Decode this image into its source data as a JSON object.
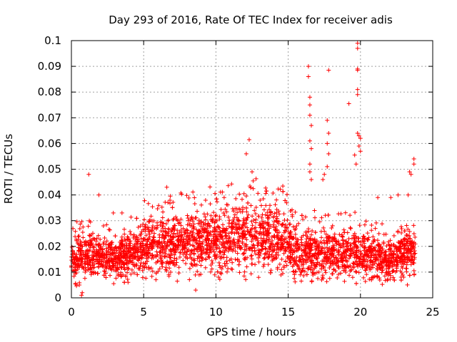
{
  "chart_data": {
    "type": "scatter",
    "title": "Day 293 of 2016, Rate Of TEC Index for receiver adis",
    "xlabel": "GPS time / hours",
    "ylabel": "ROTI / TECUs",
    "xlim": [
      0,
      25
    ],
    "ylim": [
      0,
      0.1
    ],
    "xticks": [
      "0",
      "5",
      "10",
      "15",
      "20",
      "25"
    ],
    "yticks": [
      "0",
      "0.01",
      "0.02",
      "0.03",
      "0.04",
      "0.05",
      "0.06",
      "0.07",
      "0.08",
      "0.09",
      "0.1"
    ],
    "grid": true,
    "marker": "+",
    "color": "#ff0000",
    "band_profile": [
      {
        "x": 0.0,
        "low": 0.005,
        "high": 0.024
      },
      {
        "x": 0.5,
        "low": 0.004,
        "high": 0.03
      },
      {
        "x": 1.0,
        "low": 0.005,
        "high": 0.028
      },
      {
        "x": 2.0,
        "low": 0.005,
        "high": 0.026
      },
      {
        "x": 3.0,
        "low": 0.005,
        "high": 0.025
      },
      {
        "x": 4.0,
        "low": 0.006,
        "high": 0.028
      },
      {
        "x": 5.0,
        "low": 0.006,
        "high": 0.034
      },
      {
        "x": 6.0,
        "low": 0.006,
        "high": 0.033
      },
      {
        "x": 7.0,
        "low": 0.006,
        "high": 0.036
      },
      {
        "x": 8.0,
        "low": 0.006,
        "high": 0.037
      },
      {
        "x": 9.0,
        "low": 0.006,
        "high": 0.039
      },
      {
        "x": 10.0,
        "low": 0.007,
        "high": 0.038
      },
      {
        "x": 11.0,
        "low": 0.007,
        "high": 0.04
      },
      {
        "x": 12.0,
        "low": 0.007,
        "high": 0.041
      },
      {
        "x": 13.0,
        "low": 0.007,
        "high": 0.042
      },
      {
        "x": 14.0,
        "low": 0.007,
        "high": 0.042
      },
      {
        "x": 15.0,
        "low": 0.006,
        "high": 0.037
      },
      {
        "x": 16.0,
        "low": 0.005,
        "high": 0.03
      },
      {
        "x": 17.0,
        "low": 0.005,
        "high": 0.031
      },
      {
        "x": 18.0,
        "low": 0.005,
        "high": 0.031
      },
      {
        "x": 19.0,
        "low": 0.005,
        "high": 0.031
      },
      {
        "x": 20.0,
        "low": 0.005,
        "high": 0.029
      },
      {
        "x": 21.0,
        "low": 0.005,
        "high": 0.027
      },
      {
        "x": 22.0,
        "low": 0.005,
        "high": 0.025
      },
      {
        "x": 23.0,
        "low": 0.005,
        "high": 0.03
      },
      {
        "x": 23.8,
        "low": 0.005,
        "high": 0.032
      }
    ],
    "outliers": [
      {
        "x": 0.7,
        "y": 0.001
      },
      {
        "x": 0.75,
        "y": 0.002
      },
      {
        "x": 1.2,
        "y": 0.048
      },
      {
        "x": 1.9,
        "y": 0.04
      },
      {
        "x": 2.9,
        "y": 0.033
      },
      {
        "x": 3.5,
        "y": 0.033
      },
      {
        "x": 6.6,
        "y": 0.043
      },
      {
        "x": 8.6,
        "y": 0.003
      },
      {
        "x": 12.1,
        "y": 0.056
      },
      {
        "x": 12.3,
        "y": 0.0615
      },
      {
        "x": 12.5,
        "y": 0.049
      },
      {
        "x": 16.4,
        "y": 0.09
      },
      {
        "x": 16.4,
        "y": 0.086
      },
      {
        "x": 16.5,
        "y": 0.078
      },
      {
        "x": 16.5,
        "y": 0.075
      },
      {
        "x": 16.5,
        "y": 0.071
      },
      {
        "x": 16.6,
        "y": 0.067
      },
      {
        "x": 16.5,
        "y": 0.061
      },
      {
        "x": 16.6,
        "y": 0.058
      },
      {
        "x": 16.5,
        "y": 0.052
      },
      {
        "x": 16.5,
        "y": 0.049
      },
      {
        "x": 16.6,
        "y": 0.046
      },
      {
        "x": 17.8,
        "y": 0.0885
      },
      {
        "x": 17.7,
        "y": 0.069
      },
      {
        "x": 17.8,
        "y": 0.064
      },
      {
        "x": 17.7,
        "y": 0.06
      },
      {
        "x": 17.8,
        "y": 0.056
      },
      {
        "x": 17.7,
        "y": 0.051
      },
      {
        "x": 17.5,
        "y": 0.048
      },
      {
        "x": 17.4,
        "y": 0.046
      },
      {
        "x": 19.2,
        "y": 0.0755
      },
      {
        "x": 19.6,
        "y": 0.0555
      },
      {
        "x": 19.8,
        "y": 0.099
      },
      {
        "x": 19.8,
        "y": 0.097
      },
      {
        "x": 19.8,
        "y": 0.089
      },
      {
        "x": 19.8,
        "y": 0.0885
      },
      {
        "x": 19.8,
        "y": 0.081
      },
      {
        "x": 19.8,
        "y": 0.079
      },
      {
        "x": 19.8,
        "y": 0.064
      },
      {
        "x": 19.9,
        "y": 0.063
      },
      {
        "x": 20.0,
        "y": 0.062
      },
      {
        "x": 19.9,
        "y": 0.059
      },
      {
        "x": 20.0,
        "y": 0.057
      },
      {
        "x": 19.7,
        "y": 0.052
      },
      {
        "x": 21.2,
        "y": 0.039
      },
      {
        "x": 22.1,
        "y": 0.039
      },
      {
        "x": 22.6,
        "y": 0.04
      },
      {
        "x": 23.4,
        "y": 0.049
      },
      {
        "x": 23.5,
        "y": 0.048
      },
      {
        "x": 23.7,
        "y": 0.054
      },
      {
        "x": 23.7,
        "y": 0.052
      },
      {
        "x": 23.3,
        "y": 0.04
      }
    ]
  }
}
